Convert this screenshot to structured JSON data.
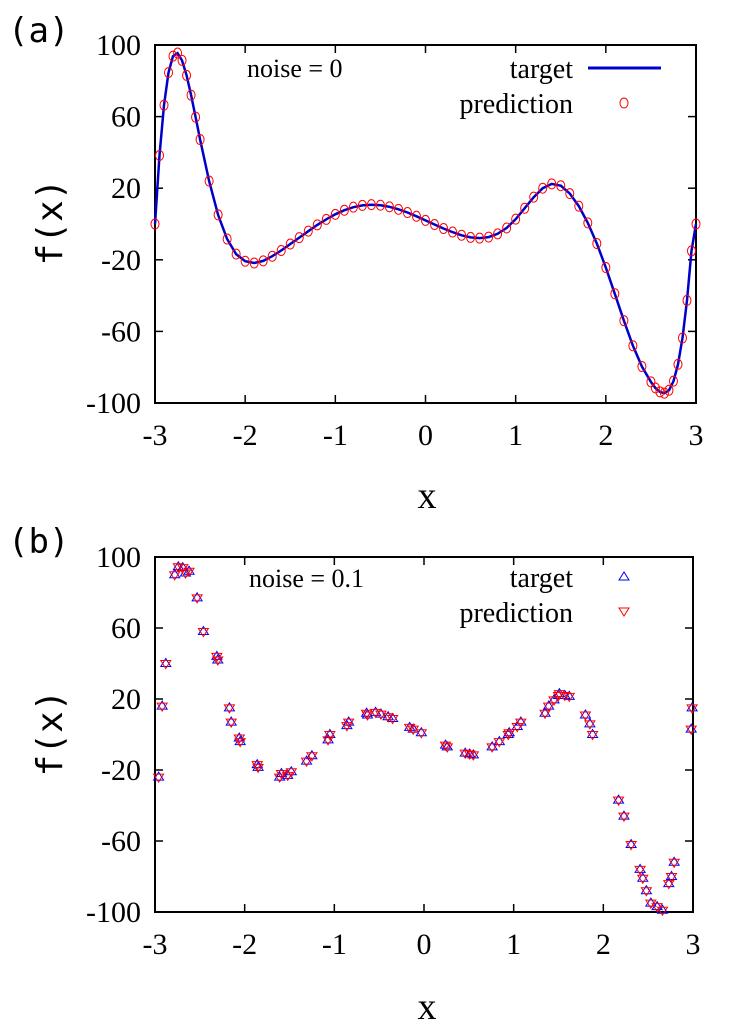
{
  "chart_data": [
    {
      "panel": "(a)",
      "type": "line",
      "annotation": "noise = 0",
      "xlabel": "x",
      "ylabel": "f(x)",
      "xlim": [
        -3,
        3
      ],
      "ylim": [
        -100,
        100
      ],
      "xticks": [
        "-3",
        "-2",
        "-1",
        "0",
        "1",
        "2",
        "3"
      ],
      "yticks": [
        "100",
        "60",
        "20",
        "-20",
        "-60",
        "-100"
      ],
      "legend_position": "top-right",
      "series": [
        {
          "name": "target",
          "style": "line",
          "color": "#0000cc",
          "x": [
            -3.0,
            -2.95,
            -2.9,
            -2.85,
            -2.8,
            -2.75,
            -2.7,
            -2.65,
            -2.6,
            -2.55,
            -2.5,
            -2.4,
            -2.3,
            -2.2,
            -2.1,
            -2.0,
            -1.9,
            -1.8,
            -1.7,
            -1.6,
            -1.5,
            -1.4,
            -1.3,
            -1.2,
            -1.1,
            -1.0,
            -0.9,
            -0.8,
            -0.7,
            -0.6,
            -0.5,
            -0.4,
            -0.3,
            -0.2,
            -0.1,
            0.0,
            0.1,
            0.2,
            0.3,
            0.4,
            0.5,
            0.6,
            0.7,
            0.8,
            0.9,
            1.0,
            1.1,
            1.2,
            1.3,
            1.4,
            1.5,
            1.6,
            1.7,
            1.8,
            1.9,
            2.0,
            2.1,
            2.2,
            2.3,
            2.4,
            2.5,
            2.55,
            2.6,
            2.65,
            2.7,
            2.75,
            2.8,
            2.85,
            2.9,
            2.95,
            3.0
          ],
          "y": [
            0.0,
            38.3,
            66.4,
            84.6,
            93.8,
            95.5,
            91.4,
            83.0,
            72.0,
            59.7,
            47.2,
            24.0,
            5.1,
            -8.4,
            -16.8,
            -20.8,
            -21.8,
            -20.6,
            -18.0,
            -14.8,
            -11.2,
            -7.6,
            -4.0,
            -0.5,
            2.6,
            5.4,
            7.7,
            9.4,
            10.4,
            10.8,
            10.5,
            9.6,
            8.2,
            6.4,
            4.3,
            2.0,
            -0.3,
            -2.5,
            -4.5,
            -6.3,
            -7.5,
            -7.9,
            -7.3,
            -5.5,
            -2.2,
            2.7,
            8.8,
            15.0,
            20.0,
            22.4,
            21.4,
            17.0,
            10.0,
            0.6,
            -10.9,
            -24.3,
            -39.0,
            -54.0,
            -68.0,
            -79.6,
            -88.2,
            -91.6,
            -93.8,
            -94.5,
            -92.9,
            -87.8,
            -78.4,
            -63.7,
            -42.7,
            -15.0,
            0.0
          ]
        },
        {
          "name": "prediction",
          "style": "circle",
          "color": "#ff0000",
          "x": [
            -3.0,
            -2.95,
            -2.9,
            -2.85,
            -2.8,
            -2.75,
            -2.7,
            -2.65,
            -2.6,
            -2.55,
            -2.5,
            -2.4,
            -2.3,
            -2.2,
            -2.1,
            -2.0,
            -1.9,
            -1.8,
            -1.7,
            -1.6,
            -1.5,
            -1.4,
            -1.3,
            -1.2,
            -1.1,
            -1.0,
            -0.9,
            -0.8,
            -0.7,
            -0.6,
            -0.5,
            -0.4,
            -0.3,
            -0.2,
            -0.1,
            0.0,
            0.1,
            0.2,
            0.3,
            0.4,
            0.5,
            0.6,
            0.7,
            0.8,
            0.9,
            1.0,
            1.1,
            1.2,
            1.3,
            1.4,
            1.5,
            1.6,
            1.7,
            1.8,
            1.9,
            2.0,
            2.1,
            2.2,
            2.3,
            2.4,
            2.5,
            2.55,
            2.6,
            2.65,
            2.7,
            2.75,
            2.8,
            2.85,
            2.9,
            2.95,
            3.0
          ],
          "y": [
            0.0,
            38.3,
            66.4,
            84.6,
            93.8,
            95.5,
            91.4,
            83.0,
            72.0,
            59.7,
            47.2,
            24.0,
            5.1,
            -8.4,
            -16.8,
            -20.8,
            -21.8,
            -20.6,
            -18.0,
            -14.8,
            -11.2,
            -7.6,
            -4.0,
            -0.5,
            2.6,
            5.4,
            7.7,
            9.4,
            10.4,
            10.8,
            10.5,
            9.6,
            8.2,
            6.4,
            4.3,
            2.0,
            -0.3,
            -2.5,
            -4.5,
            -6.3,
            -7.5,
            -7.9,
            -7.3,
            -5.5,
            -2.2,
            2.7,
            8.8,
            15.0,
            20.0,
            22.4,
            21.4,
            17.0,
            10.0,
            0.6,
            -10.9,
            -24.3,
            -39.0,
            -54.0,
            -68.0,
            -79.6,
            -88.2,
            -91.6,
            -93.8,
            -94.5,
            -92.9,
            -87.8,
            -78.4,
            -63.7,
            -42.7,
            -15.0,
            0.0
          ]
        }
      ]
    },
    {
      "panel": "(b)",
      "type": "scatter",
      "annotation": "noise = 0.1",
      "xlabel": "x",
      "ylabel": "f(x)",
      "xlim": [
        -3,
        3
      ],
      "ylim": [
        -100,
        100
      ],
      "xticks": [
        "-3",
        "-2",
        "-1",
        "0",
        "1",
        "2",
        "3"
      ],
      "yticks": [
        "100",
        "60",
        "20",
        "-20",
        "-60",
        "-100"
      ],
      "legend_position": "top-right",
      "series": [
        {
          "name": "target",
          "style": "triangle-up",
          "color": "#0000ff",
          "x": [
            -2.96,
            -2.92,
            -2.88,
            -2.78,
            -2.74,
            -2.69,
            -2.66,
            -2.62,
            -2.53,
            -2.46,
            -2.31,
            -2.3,
            -2.17,
            -2.15,
            -2.06,
            -2.05,
            -1.86,
            -1.85,
            -1.61,
            -1.59,
            -1.52,
            -1.48,
            -1.31,
            -1.25,
            -1.07,
            -1.05,
            -0.86,
            -0.84,
            -0.64,
            -0.63,
            -0.54,
            -0.48,
            -0.4,
            -0.35,
            -0.16,
            -0.12,
            -0.03,
            0.24,
            0.26,
            0.46,
            0.51,
            0.55,
            0.76,
            0.84,
            0.94,
            0.95,
            1.04,
            1.08,
            1.35,
            1.39,
            1.45,
            1.5,
            1.51,
            1.57,
            1.62,
            1.8,
            1.85,
            1.88,
            2.17,
            2.23,
            2.31,
            2.41,
            2.44,
            2.48,
            2.53,
            2.6,
            2.66,
            2.73,
            2.76,
            2.79,
            2.98,
            2.99
          ],
          "y": [
            -24.0,
            16.0,
            40.0,
            90.0,
            94.5,
            94.0,
            91.0,
            92.0,
            77.0,
            58.0,
            44.0,
            42.0,
            15.0,
            7.0,
            -2.0,
            -4.0,
            -17.0,
            -18.5,
            -24.0,
            -22.0,
            -23.0,
            -21.0,
            -15.0,
            -12.0,
            -3.0,
            0.0,
            5.0,
            7.0,
            12.0,
            11.0,
            12.5,
            11.5,
            10.0,
            9.0,
            4.0,
            3.0,
            1.0,
            -6.0,
            -7.0,
            -10.5,
            -11.0,
            -11.5,
            -7.0,
            -4.0,
            0.0,
            1.0,
            4.5,
            7.0,
            12.0,
            16.0,
            19.5,
            22.0,
            23.0,
            22.0,
            21.5,
            11.0,
            6.0,
            0.0,
            -37.0,
            -46.0,
            -62.0,
            -76.0,
            -81.0,
            -88.0,
            -95.0,
            -97.0,
            -99.0,
            -84.0,
            -80.0,
            -72.0,
            3.0,
            15.0
          ]
        },
        {
          "name": "prediction",
          "style": "triangle-down",
          "color": "#ff0000",
          "x": [
            -2.96,
            -2.92,
            -2.88,
            -2.78,
            -2.74,
            -2.69,
            -2.66,
            -2.62,
            -2.53,
            -2.46,
            -2.31,
            -2.3,
            -2.17,
            -2.15,
            -2.06,
            -2.05,
            -1.86,
            -1.85,
            -1.61,
            -1.59,
            -1.52,
            -1.48,
            -1.31,
            -1.25,
            -1.07,
            -1.05,
            -0.86,
            -0.84,
            -0.64,
            -0.63,
            -0.54,
            -0.48,
            -0.4,
            -0.35,
            -0.16,
            -0.12,
            -0.03,
            0.24,
            0.26,
            0.46,
            0.51,
            0.55,
            0.76,
            0.84,
            0.94,
            0.95,
            1.04,
            1.08,
            1.35,
            1.39,
            1.45,
            1.5,
            1.51,
            1.57,
            1.62,
            1.8,
            1.85,
            1.88,
            2.17,
            2.23,
            2.31,
            2.41,
            2.44,
            2.48,
            2.53,
            2.6,
            2.66,
            2.73,
            2.76,
            2.79,
            2.98,
            2.99
          ],
          "y": [
            -24.0,
            16.0,
            40.0,
            90.0,
            94.5,
            94.0,
            91.0,
            92.0,
            77.0,
            58.0,
            44.0,
            42.0,
            15.0,
            7.0,
            -2.0,
            -4.0,
            -17.0,
            -18.5,
            -24.0,
            -22.0,
            -23.0,
            -21.0,
            -15.0,
            -12.0,
            -3.0,
            0.0,
            5.0,
            7.0,
            12.0,
            11.0,
            12.5,
            11.5,
            10.0,
            9.0,
            4.0,
            3.0,
            1.0,
            -6.0,
            -7.0,
            -10.5,
            -11.0,
            -11.5,
            -7.0,
            -4.0,
            0.0,
            1.0,
            4.5,
            7.0,
            12.0,
            16.0,
            19.5,
            22.0,
            23.0,
            22.0,
            21.5,
            11.0,
            6.0,
            0.0,
            -37.0,
            -46.0,
            -62.0,
            -76.0,
            -81.0,
            -88.0,
            -95.0,
            -97.0,
            -99.0,
            -84.0,
            -80.0,
            -72.0,
            3.0,
            15.0
          ]
        }
      ]
    }
  ]
}
